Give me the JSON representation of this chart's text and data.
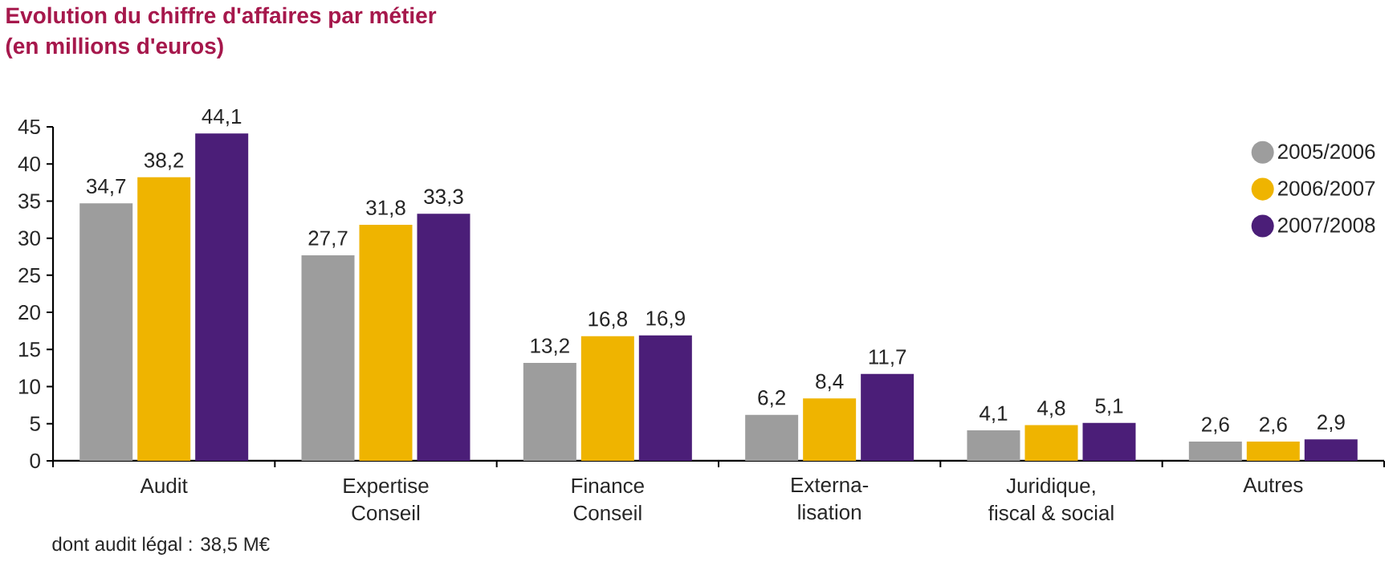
{
  "chart_data": {
    "type": "bar",
    "title": "Evolution du chiffre d'affaires par métier",
    "subtitle": "(en millions d'euros)",
    "categories": [
      "Audit",
      "Expertise\nConseil",
      "Finance\nConseil",
      "Externa-\nlisation",
      "Juridique,\nfiscal & social",
      "Autres"
    ],
    "series": [
      {
        "name": "2005/2006",
        "color": "#9d9d9d",
        "values": [
          34.7,
          27.7,
          13.2,
          6.2,
          4.1,
          2.6
        ],
        "value_labels": [
          "34,7",
          "27,7",
          "13,2",
          "6,2",
          "4,1",
          "2,6"
        ]
      },
      {
        "name": "2006/2007",
        "color": "#efb400",
        "values": [
          38.2,
          31.8,
          16.8,
          8.4,
          4.8,
          2.6
        ],
        "value_labels": [
          "38,2",
          "31,8",
          "16,8",
          "8,4",
          "4,8",
          "2,6"
        ]
      },
      {
        "name": "2007/2008",
        "color": "#4b1e78",
        "values": [
          44.1,
          33.3,
          16.9,
          11.7,
          5.1,
          2.9
        ],
        "value_labels": [
          "44,1",
          "33,3",
          "16,9",
          "11,7",
          "5,1",
          "2,9"
        ]
      }
    ],
    "ylim": [
      0,
      45
    ],
    "yticks": [
      0,
      5,
      10,
      15,
      20,
      25,
      30,
      35,
      40,
      45
    ],
    "legend": "top right",
    "annotations": [
      "dont audit légal : 38,5 M€"
    ]
  }
}
